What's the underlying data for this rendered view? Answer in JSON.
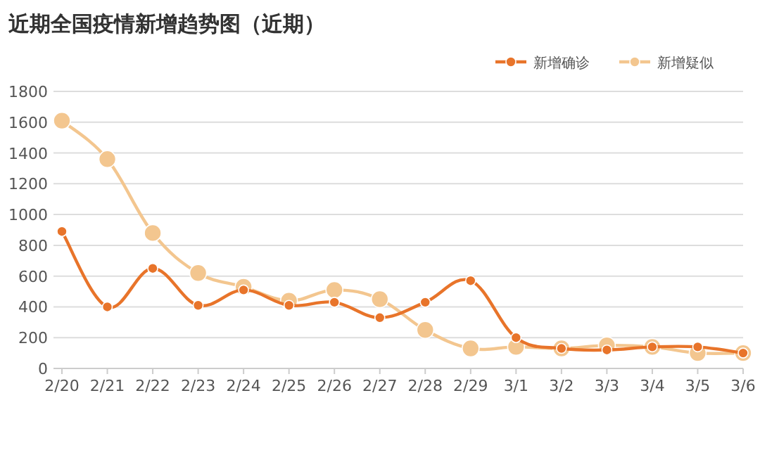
{
  "chart_data": {
    "type": "line",
    "title": "近期全国疫情新增趋势图（近期）",
    "categories": [
      "2/20",
      "2/21",
      "2/22",
      "2/23",
      "2/24",
      "2/25",
      "2/26",
      "2/27",
      "2/28",
      "2/29",
      "3/1",
      "3/2",
      "3/3",
      "3/4",
      "3/5",
      "3/6"
    ],
    "series": [
      {
        "name": "新增确诊",
        "color": "#e8742a",
        "values": [
          890,
          400,
          650,
          410,
          510,
          410,
          430,
          330,
          430,
          570,
          200,
          130,
          120,
          140,
          140,
          100
        ]
      },
      {
        "name": "新增疑似",
        "color": "#f3c68f",
        "values": [
          1610,
          1360,
          880,
          620,
          530,
          440,
          510,
          450,
          250,
          130,
          140,
          130,
          150,
          140,
          100,
          100
        ]
      }
    ],
    "ylim": [
      0,
      1800
    ],
    "yticks": [
      0,
      200,
      400,
      600,
      800,
      1000,
      1200,
      1400,
      1600,
      1800
    ],
    "grid": "y",
    "legend": "top right",
    "marker": "circle",
    "line_style": "solid"
  }
}
